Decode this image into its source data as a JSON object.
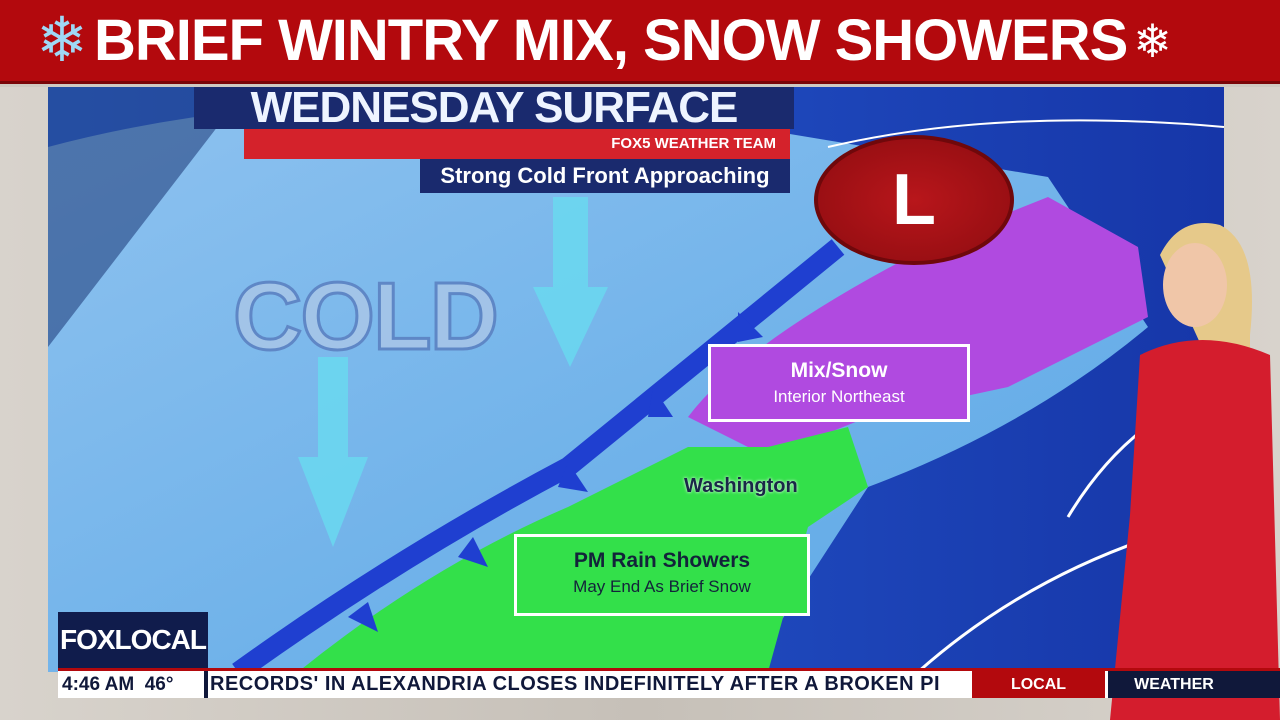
{
  "banner": {
    "title": "BRIEF WINTRY MIX, SNOW SHOWERS",
    "left_icon": "snowflake-icon",
    "right_icon": "snowflake-icon"
  },
  "map": {
    "title": "WEDNESDAY SURFACE",
    "team": "FOX5 WEATHER TEAM",
    "subtitle": "Strong Cold Front Approaching",
    "cold_label": "COLD",
    "low_label": "L",
    "mix_label": {
      "title": "Mix/Snow",
      "sub": "Interior Northeast"
    },
    "rain_label": {
      "title": "PM Rain Showers",
      "sub": "May End As Brief Snow"
    },
    "city": "Washington",
    "colors": {
      "mix": "#b04ae0",
      "rain": "#33e04a",
      "front": "#1f3fd0",
      "low": "#a51217"
    }
  },
  "logo": {
    "text": "FOXLOCAL"
  },
  "ticker": {
    "time": "4:46 AM",
    "temp": "46°",
    "crawl": "RECORDS' IN ALEXANDRIA CLOSES INDEFINITELY AFTER A BROKEN PI",
    "local": "LOCAL",
    "weather": "WEATHER"
  }
}
